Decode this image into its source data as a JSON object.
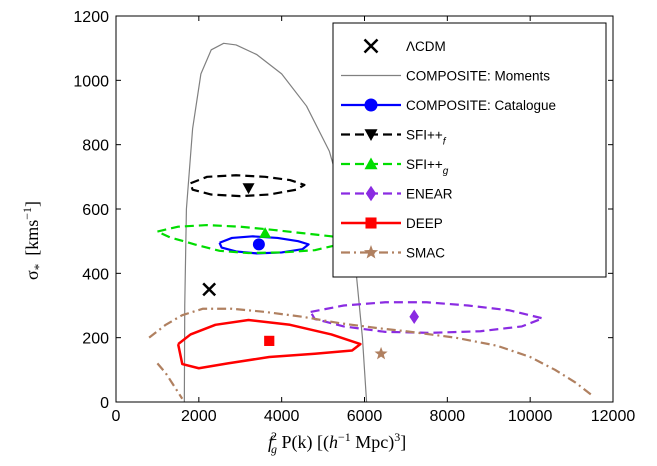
{
  "chart_data": {
    "type": "line",
    "xlim": [
      0,
      12000
    ],
    "ylim": [
      0,
      1200
    ],
    "x_ticks": [
      0,
      2000,
      4000,
      6000,
      8000,
      10000,
      12000
    ],
    "y_ticks": [
      0,
      200,
      400,
      600,
      800,
      1000,
      1200
    ],
    "x_tick_labels": [
      "0",
      "2000",
      "4000",
      "6000",
      "8000",
      "10000",
      "12000"
    ],
    "y_tick_labels": [
      "0",
      "200",
      "400",
      "600",
      "800",
      "1000",
      "1200"
    ],
    "xlabel": "f_g^2 P(k) [(h^-1 Mpc)^3]",
    "ylabel": "σ_* [kms^-1]",
    "legend_position": "top-right",
    "grid": false,
    "series": [
      {
        "name": "ΛCDM",
        "color": "#000000",
        "marker": "x",
        "style": "none",
        "contour": [],
        "point": [
          2250,
          350
        ]
      },
      {
        "name": "COMPOSITE: Moments",
        "color": "#808080",
        "marker": "none",
        "style": "solid",
        "width": 1.2,
        "contour": [
          [
            1650,
            0
          ],
          [
            1660,
            300
          ],
          [
            1700,
            600
          ],
          [
            1850,
            850
          ],
          [
            2050,
            1020
          ],
          [
            2300,
            1095
          ],
          [
            2600,
            1115
          ],
          [
            2900,
            1110
          ],
          [
            3400,
            1080
          ],
          [
            4000,
            1020
          ],
          [
            4600,
            920
          ],
          [
            5150,
            780
          ],
          [
            5550,
            600
          ],
          [
            5800,
            400
          ],
          [
            5950,
            200
          ],
          [
            6050,
            0
          ]
        ],
        "point": null
      },
      {
        "name": "COMPOSITE: Catalogue",
        "color": "#0000ff",
        "marker": "circle",
        "style": "solid",
        "width": 2.2,
        "contour": [
          [
            2500,
            495
          ],
          [
            2800,
            510
          ],
          [
            3300,
            515
          ],
          [
            3900,
            510
          ],
          [
            4400,
            500
          ],
          [
            4650,
            490
          ],
          [
            4500,
            475
          ],
          [
            4000,
            465
          ],
          [
            3400,
            462
          ],
          [
            2900,
            468
          ],
          [
            2550,
            480
          ],
          [
            2500,
            495
          ]
        ],
        "point": [
          3450,
          490
        ]
      },
      {
        "name": "SFI++_f",
        "color": "#000000",
        "marker": "triangle-down",
        "style": "dashed",
        "width": 2.2,
        "contour": [
          [
            1800,
            680
          ],
          [
            2200,
            700
          ],
          [
            2900,
            705
          ],
          [
            3600,
            700
          ],
          [
            4200,
            690
          ],
          [
            4550,
            675
          ],
          [
            4350,
            660
          ],
          [
            3700,
            645
          ],
          [
            3000,
            640
          ],
          [
            2300,
            645
          ],
          [
            1850,
            660
          ],
          [
            1800,
            680
          ]
        ],
        "point": [
          3200,
          665
        ]
      },
      {
        "name": "SFI++_g",
        "color": "#00dd00",
        "marker": "triangle-up",
        "style": "dashed",
        "width": 2.2,
        "contour": [
          [
            1000,
            530
          ],
          [
            1500,
            545
          ],
          [
            2200,
            550
          ],
          [
            3000,
            545
          ],
          [
            3800,
            535
          ],
          [
            4500,
            525
          ],
          [
            5200,
            515
          ],
          [
            5650,
            505
          ],
          [
            5400,
            490
          ],
          [
            4800,
            472
          ],
          [
            4000,
            465
          ],
          [
            3200,
            463
          ],
          [
            2500,
            470
          ],
          [
            1900,
            490
          ],
          [
            1300,
            512
          ],
          [
            1000,
            530
          ]
        ],
        "point": [
          3600,
          525
        ]
      },
      {
        "name": "ENEAR",
        "color": "#8a2be2",
        "marker": "diamond",
        "style": "dashed",
        "width": 2.2,
        "contour": [
          [
            4700,
            280
          ],
          [
            5500,
            300
          ],
          [
            6500,
            310
          ],
          [
            7500,
            310
          ],
          [
            8500,
            300
          ],
          [
            9500,
            285
          ],
          [
            10300,
            260
          ],
          [
            9800,
            235
          ],
          [
            8800,
            220
          ],
          [
            7600,
            215
          ],
          [
            6500,
            218
          ],
          [
            5500,
            235
          ],
          [
            4800,
            258
          ],
          [
            4700,
            280
          ]
        ],
        "point": [
          7200,
          265
        ]
      },
      {
        "name": "DEEP",
        "color": "#ff0000",
        "marker": "square",
        "style": "solid",
        "width": 2.5,
        "contour": [
          [
            1500,
            180
          ],
          [
            1800,
            210
          ],
          [
            2400,
            240
          ],
          [
            3200,
            255
          ],
          [
            4200,
            240
          ],
          [
            5200,
            210
          ],
          [
            5900,
            180
          ],
          [
            5700,
            160
          ],
          [
            4800,
            150
          ],
          [
            3700,
            140
          ],
          [
            2700,
            120
          ],
          [
            2000,
            105
          ],
          [
            1600,
            118
          ],
          [
            1500,
            180
          ]
        ],
        "point": [
          3700,
          190
        ]
      },
      {
        "name": "SMAC",
        "color": "#b08060",
        "marker": "star",
        "style": "dashdot",
        "width": 2.2,
        "contour": [
          [
            800,
            200
          ],
          [
            1200,
            240
          ],
          [
            1600,
            270
          ],
          [
            2100,
            290
          ],
          [
            2800,
            290
          ],
          [
            3600,
            280
          ],
          [
            4500,
            265
          ],
          [
            5400,
            245
          ],
          [
            6300,
            230
          ],
          [
            7000,
            220
          ],
          [
            8200,
            200
          ],
          [
            9200,
            175
          ],
          [
            10000,
            140
          ],
          [
            10600,
            100
          ],
          [
            11100,
            60
          ],
          [
            11500,
            20
          ]
        ],
        "contour2": [
          [
            1000,
            120
          ],
          [
            1200,
            90
          ],
          [
            1400,
            50
          ],
          [
            1600,
            10
          ]
        ],
        "point": [
          6400,
          150
        ]
      }
    ]
  },
  "legend_labels": [
    "ΛCDM",
    "COMPOSITE: Moments",
    "COMPOSITE: Catalogue",
    "SFI++",
    "SFI++",
    "ENEAR",
    "DEEP",
    "SMAC"
  ],
  "legend_subs": [
    "",
    "",
    "",
    "f",
    "g",
    "",
    "",
    ""
  ],
  "xlabel_parts": {
    "f": "f",
    "g_sub": "g",
    "sq": "2",
    "rest": " P(k) [(",
    "h": "h",
    "minus1": "−1",
    "mpc": " Mpc)",
    "cube": "3",
    "close": "]"
  },
  "ylabel_parts": {
    "sigma": "σ",
    "star": "*",
    "kms": "[kms",
    "minus1": "−1",
    "close": "]"
  }
}
